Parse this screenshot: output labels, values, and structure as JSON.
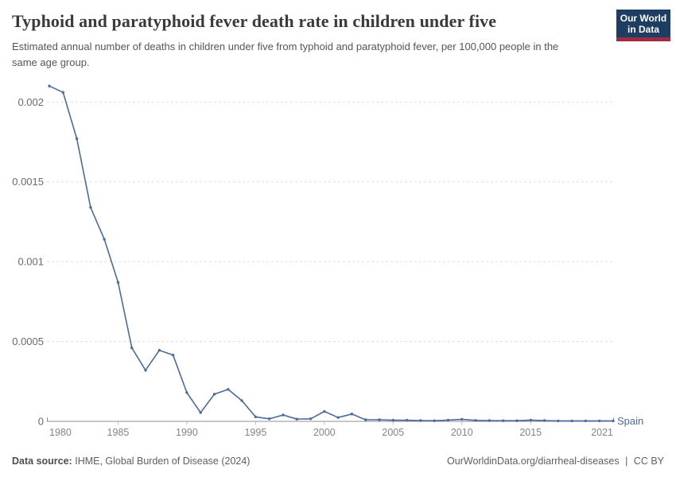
{
  "header": {
    "title": "Typhoid and paratyphoid fever death rate in children under five",
    "subtitle": "Estimated annual number of deaths in children under five from typhoid and paratyphoid fever, per 100,000 people in the same age group."
  },
  "logo": {
    "line1": "Our World",
    "line2": "in Data"
  },
  "chart_data": {
    "type": "line",
    "title": "Typhoid and paratyphoid fever death rate in children under five",
    "xlabel": "",
    "ylabel": "",
    "xlim": [
      1980,
      2021
    ],
    "ylim": [
      0,
      0.00215
    ],
    "grid": "horizontal-dashed",
    "legend_position": "end-of-line-label",
    "x": [
      1980,
      1981,
      1982,
      1983,
      1984,
      1985,
      1986,
      1987,
      1988,
      1989,
      1990,
      1991,
      1992,
      1993,
      1994,
      1995,
      1996,
      1997,
      1998,
      1999,
      2000,
      2001,
      2002,
      2003,
      2004,
      2005,
      2006,
      2007,
      2008,
      2009,
      2010,
      2011,
      2012,
      2013,
      2014,
      2015,
      2016,
      2017,
      2018,
      2019,
      2020,
      2021
    ],
    "series": [
      {
        "name": "Spain",
        "color": "#4c6a9c",
        "values": [
          0.0021,
          0.00206,
          0.00177,
          0.00134,
          0.00114,
          0.00087,
          0.00046,
          0.00032,
          0.000445,
          0.000415,
          0.00018,
          5.5e-05,
          0.00017,
          0.0002,
          0.00013,
          2.8e-05,
          1.6e-05,
          4e-05,
          1.4e-05,
          1.6e-05,
          6.2e-05,
          2.4e-05,
          4.6e-05,
          1e-05,
          1e-05,
          7e-06,
          7e-06,
          5e-06,
          4e-06,
          8e-06,
          1.3e-05,
          6e-06,
          5e-06,
          4e-06,
          4e-06,
          8e-06,
          5e-06,
          3e-06,
          3e-06,
          3e-06,
          3e-06,
          3e-06
        ]
      }
    ],
    "y_ticks": [
      0,
      0.0005,
      0.001,
      0.0015,
      0.002
    ],
    "y_tick_labels": [
      "0",
      "0.0005",
      "0.001",
      "0.0015",
      "0.002"
    ],
    "x_ticks": [
      1980,
      1985,
      1990,
      1995,
      2000,
      2005,
      2010,
      2015,
      2021
    ],
    "x_tick_labels": [
      "1980",
      "1985",
      "1990",
      "1995",
      "2000",
      "2005",
      "2010",
      "2015",
      "2021"
    ]
  },
  "footer": {
    "source_label": "Data source:",
    "source_value": "IHME, Global Burden of Disease (2024)",
    "link": "OurWorldinData.org/diarrheal-diseases",
    "separator": "|",
    "license": "CC BY"
  },
  "colors": {
    "accent": "#4c6a9c",
    "logo_bg": "#1d3d63",
    "logo_stripe": "#a12d45",
    "grid": "#dddddd",
    "axis": "#8f8f8f",
    "x_tick_text": "#858585",
    "y_tick_text": "#6b6b6b"
  }
}
